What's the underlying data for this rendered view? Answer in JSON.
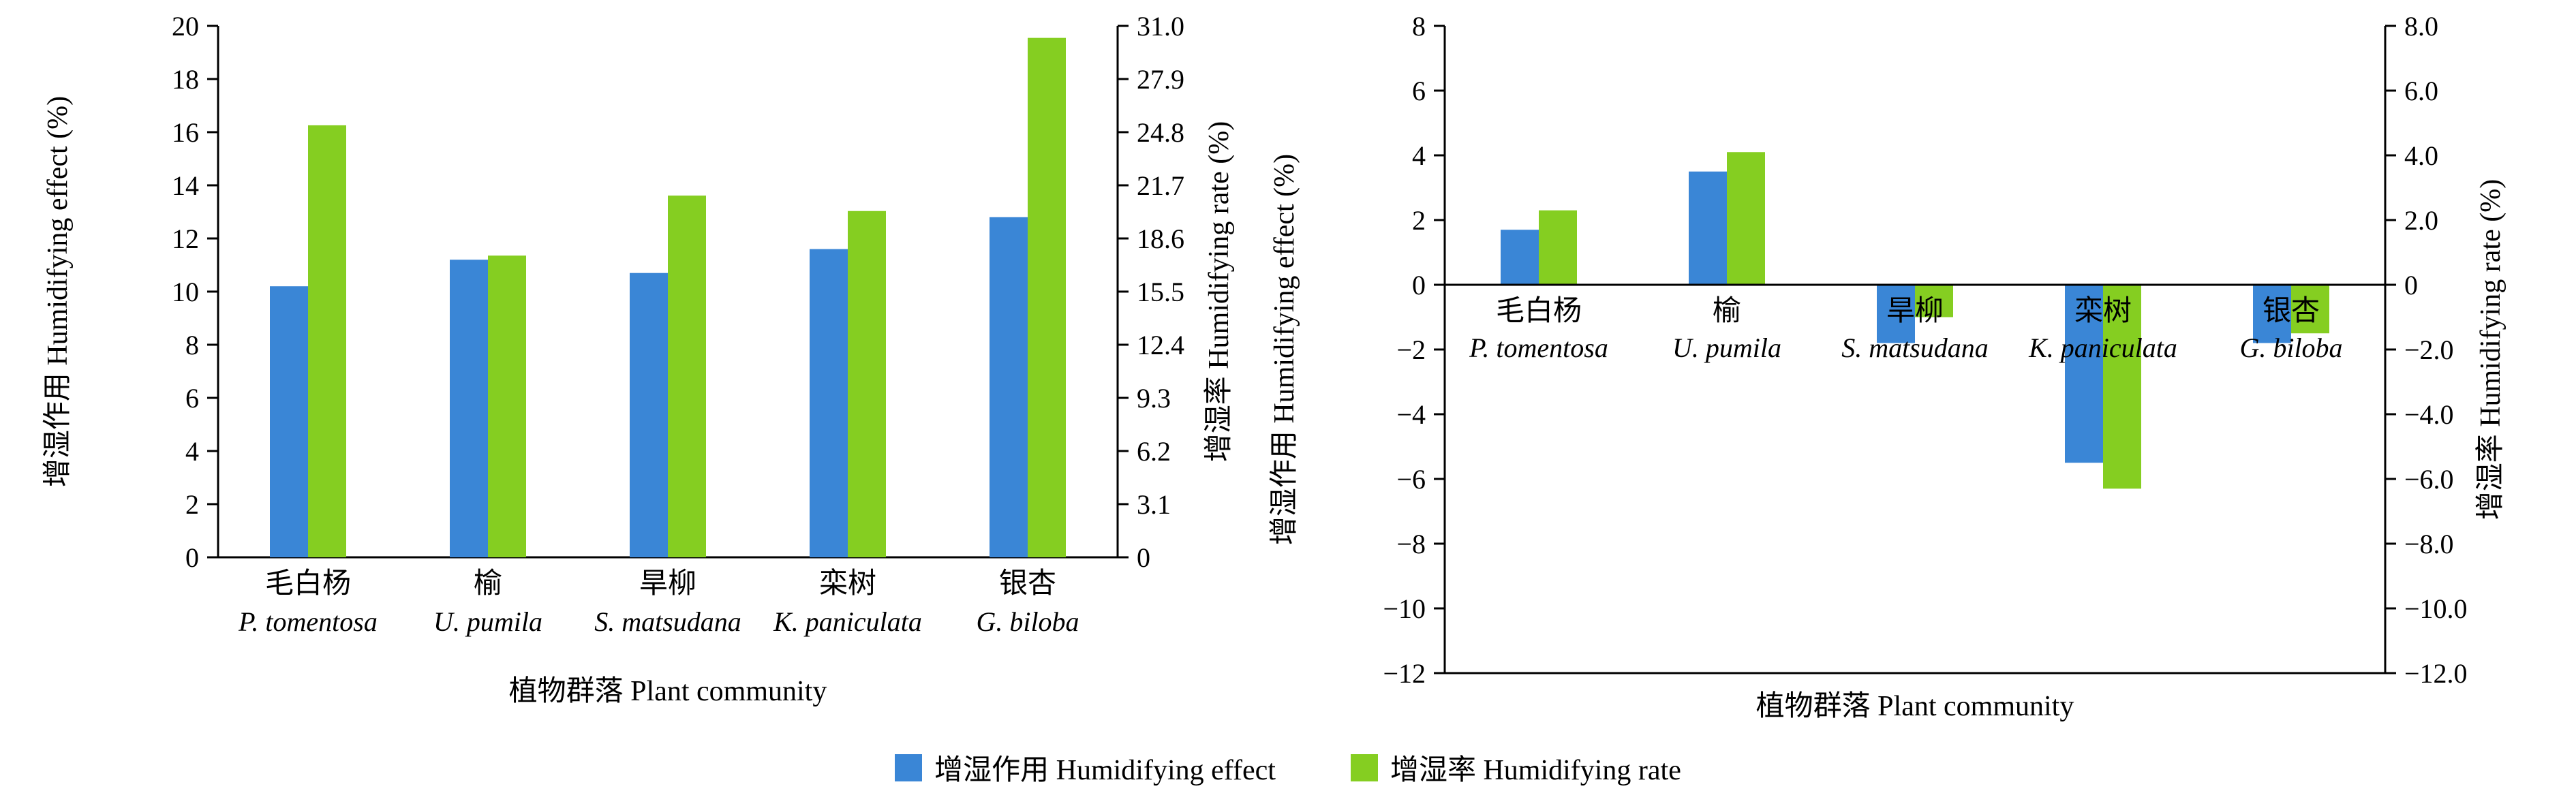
{
  "colors": {
    "effect": "#3A86D6",
    "rate": "#85CE21"
  },
  "legend": {
    "items": [
      {
        "label": "增湿作用 Humidifying effect",
        "color": "#3A86D6"
      },
      {
        "label": "增湿率 Humidifying rate",
        "color": "#85CE21"
      }
    ]
  },
  "chart_data": [
    {
      "type": "bar",
      "title": "",
      "categories_cn": [
        "毛白杨",
        "榆",
        "旱柳",
        "栾树",
        "银杏"
      ],
      "categories_latin": [
        "P. tomentosa",
        "U. pumila",
        "S. matsudana",
        "K. paniculata",
        "G. biloba"
      ],
      "series": [
        {
          "name": "增湿作用 Humidifying effect",
          "axis": "left",
          "values": [
            10.2,
            11.2,
            10.7,
            11.6,
            12.8
          ]
        },
        {
          "name": "增湿率 Humidifying rate",
          "axis": "right",
          "values": [
            25.2,
            17.6,
            21.1,
            20.2,
            30.3
          ]
        }
      ],
      "left_axis": {
        "label": "增湿作用 Humidifying effect (%)",
        "min": 0,
        "max": 20,
        "decimals": 0,
        "ticks": [
          0,
          2,
          4,
          6,
          8,
          10,
          12,
          14,
          16,
          18,
          20
        ]
      },
      "right_axis": {
        "label": "增湿率 Humidifying rate (%)",
        "min": 0,
        "max": 31,
        "decimals": 1,
        "ticks": [
          0,
          3.1,
          6.2,
          9.3,
          12.4,
          15.5,
          18.6,
          21.7,
          24.8,
          27.9,
          31.0
        ]
      },
      "xlabel": "植物群落 Plant community",
      "grid": false,
      "legend_position": "bottom"
    },
    {
      "type": "bar",
      "title": "",
      "categories_cn": [
        "毛白杨",
        "榆",
        "旱柳",
        "栾树",
        "银杏"
      ],
      "categories_latin": [
        "P. tomentosa",
        "U. pumila",
        "S. matsudana",
        "K. paniculata",
        "G. biloba"
      ],
      "series": [
        {
          "name": "增湿作用 Humidifying effect",
          "axis": "left",
          "values": [
            1.7,
            3.5,
            -1.8,
            -5.5,
            -1.8
          ]
        },
        {
          "name": "增湿率 Humidifying rate",
          "axis": "right",
          "values": [
            2.3,
            4.1,
            -1.0,
            -6.3,
            -1.5
          ]
        }
      ],
      "left_axis": {
        "label": "增湿作用 Humidifying effect (%)",
        "min": -12,
        "max": 8,
        "decimals": 0,
        "ticks": [
          -12,
          -10,
          -8,
          -6,
          -4,
          -2,
          0,
          2,
          4,
          6,
          8
        ]
      },
      "right_axis": {
        "label": "增湿率 Humidifying rate (%)",
        "min": -12,
        "max": 8,
        "decimals": 1,
        "ticks": [
          -12,
          -10,
          -8,
          -6,
          -4,
          -2,
          0,
          2,
          4,
          6,
          8
        ]
      },
      "xlabel": "植物群落 Plant community",
      "grid": false,
      "legend_position": "bottom"
    }
  ]
}
